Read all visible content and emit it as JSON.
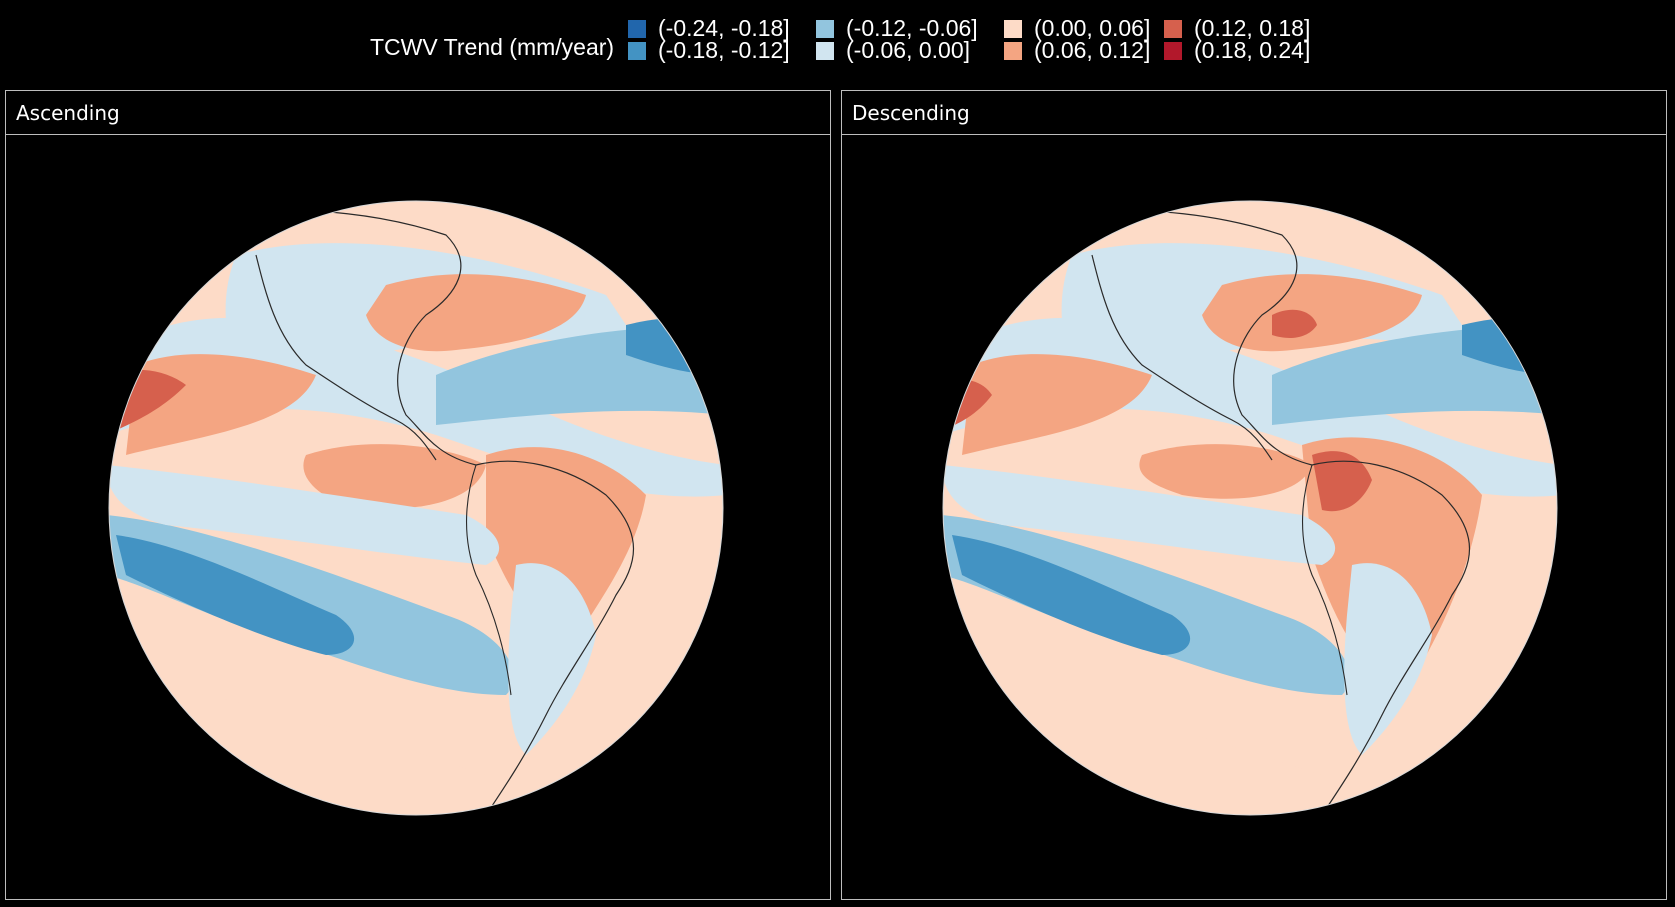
{
  "legend": {
    "title": "TCWV Trend (mm/year)",
    "bins": [
      {
        "label": "(-0.24, -0.18]",
        "color": "#2166ac"
      },
      {
        "label": "(-0.18, -0.12]",
        "color": "#4393c3"
      },
      {
        "label": "(-0.12, -0.06]",
        "color": "#92c5de"
      },
      {
        "label": "(-0.06, 0.00]",
        "color": "#d1e5f0"
      },
      {
        "label": "(0.00, 0.06]",
        "color": "#fddbc7"
      },
      {
        "label": "(0.06, 0.12]",
        "color": "#f4a582"
      },
      {
        "label": "(0.12, 0.18]",
        "color": "#d6604d"
      },
      {
        "label": "(0.18, 0.24]",
        "color": "#b2182b"
      }
    ]
  },
  "panels": [
    {
      "label": "Ascending"
    },
    {
      "label": "Descending"
    }
  ]
}
